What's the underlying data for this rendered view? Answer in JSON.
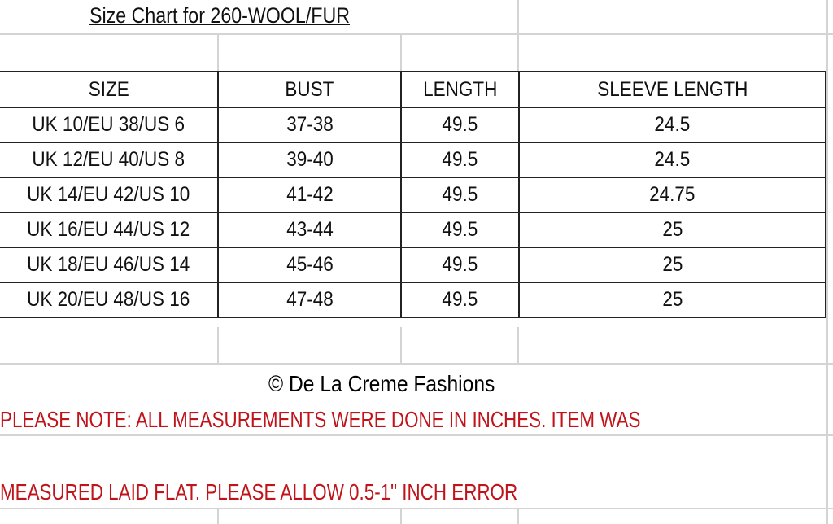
{
  "title": "Size Chart for 260-WOOL/FUR",
  "table": {
    "headers": [
      "SIZE",
      "BUST",
      "LENGTH",
      "SLEEVE LENGTH"
    ],
    "rows": [
      [
        "UK 10/EU 38/US 6",
        "37-38",
        "49.5",
        "24.5"
      ],
      [
        "UK 12/EU 40/US 8",
        "39-40",
        "49.5",
        "24.5"
      ],
      [
        "UK 14/EU 42/US 10",
        "41-42",
        "49.5",
        "24.75"
      ],
      [
        "UK 16/EU 44/US 12",
        "43-44",
        "49.5",
        "25"
      ],
      [
        "UK 18/EU 46/US 14",
        "45-46",
        "49.5",
        "25"
      ],
      [
        "UK 20/EU 48/US 16",
        "47-48",
        "49.5",
        "25"
      ]
    ]
  },
  "notes": [
    "PLEASE NOTE: ALL MEASUREMENTS WERE DONE IN INCHES. ITEM WAS",
    "MEASURED LAID FLAT. PLEASE ALLOW 0.5-1\" INCH ERROR"
  ],
  "watermark": "© De La Creme Fashions",
  "colors": {
    "note": "#c0141b",
    "grid": "#d4d4d4",
    "border": "#222222"
  }
}
